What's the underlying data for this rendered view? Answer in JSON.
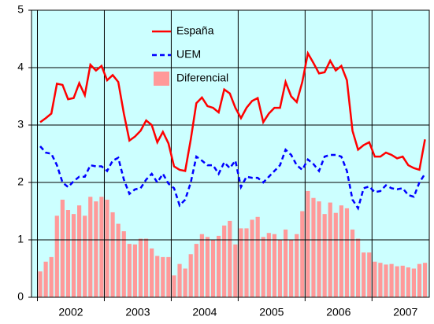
{
  "chart_data": {
    "type": "bar_line",
    "categories": [
      null,
      null,
      null,
      null,
      null,
      "2002",
      null,
      null,
      null,
      null,
      null,
      null,
      null,
      null,
      null,
      null,
      null,
      "2003",
      null,
      null,
      null,
      null,
      null,
      null,
      null,
      null,
      null,
      null,
      null,
      "2004",
      null,
      null,
      null,
      null,
      null,
      null,
      null,
      null,
      null,
      null,
      null,
      "2005",
      null,
      null,
      null,
      null,
      null,
      null,
      null,
      null,
      null,
      null,
      null,
      "2006",
      null,
      null,
      null,
      null,
      null,
      null,
      null,
      null,
      null,
      null,
      null,
      "2007",
      null,
      null,
      null,
      null
    ],
    "series": [
      {
        "name": "España",
        "kind": "line",
        "color": "#ff0000",
        "values": [
          3.05,
          3.12,
          3.2,
          3.72,
          3.7,
          3.45,
          3.47,
          3.73,
          3.52,
          4.05,
          3.95,
          4.03,
          3.78,
          3.87,
          3.75,
          3.2,
          2.73,
          2.8,
          2.9,
          3.08,
          3.0,
          2.7,
          2.88,
          2.68,
          2.28,
          2.22,
          2.2,
          2.75,
          3.38,
          3.48,
          3.33,
          3.3,
          3.22,
          3.62,
          3.55,
          3.3,
          3.12,
          3.3,
          3.42,
          3.47,
          3.05,
          3.2,
          3.3,
          3.3,
          3.75,
          3.5,
          3.4,
          3.75,
          4.25,
          4.08,
          3.9,
          3.92,
          4.12,
          3.95,
          4.03,
          3.78,
          2.9,
          2.57,
          2.65,
          2.7,
          2.45,
          2.45,
          2.52,
          2.48,
          2.42,
          2.45,
          2.3,
          2.25,
          2.22,
          2.75
        ]
      },
      {
        "name": "UEM",
        "kind": "dashed",
        "color": "#0000ff",
        "values": [
          2.63,
          2.52,
          2.5,
          2.3,
          2.0,
          1.92,
          2.02,
          2.1,
          2.1,
          2.3,
          2.28,
          2.28,
          2.2,
          2.38,
          2.43,
          2.05,
          1.8,
          1.88,
          1.9,
          2.05,
          2.15,
          2.0,
          2.15,
          1.98,
          1.9,
          1.6,
          1.7,
          2.0,
          2.45,
          2.38,
          2.3,
          2.3,
          2.15,
          2.35,
          2.25,
          2.38,
          1.92,
          2.1,
          2.08,
          2.08,
          2.0,
          2.1,
          2.2,
          2.3,
          2.57,
          2.48,
          2.3,
          2.22,
          2.4,
          2.32,
          2.2,
          2.45,
          2.48,
          2.48,
          2.45,
          2.2,
          1.7,
          1.55,
          1.9,
          1.93,
          1.83,
          1.85,
          1.95,
          1.9,
          1.88,
          1.9,
          1.78,
          1.75,
          2.0,
          2.15
        ]
      },
      {
        "name": "Diferencial",
        "kind": "bar",
        "color": "#ff9999",
        "values": [
          0.45,
          0.62,
          0.7,
          1.42,
          1.7,
          1.52,
          1.45,
          1.6,
          1.42,
          1.75,
          1.67,
          1.75,
          1.7,
          1.48,
          1.28,
          1.15,
          0.93,
          0.92,
          1.02,
          1.02,
          0.85,
          0.72,
          0.7,
          0.7,
          0.38,
          0.58,
          0.5,
          0.75,
          0.93,
          1.1,
          1.05,
          1.0,
          1.07,
          1.25,
          1.33,
          0.92,
          1.2,
          1.2,
          1.35,
          1.4,
          1.05,
          1.12,
          1.1,
          1.0,
          1.18,
          1.0,
          1.1,
          1.5,
          1.85,
          1.73,
          1.67,
          1.45,
          1.65,
          1.47,
          1.6,
          1.55,
          1.18,
          1.02,
          0.78,
          0.78,
          0.62,
          0.6,
          0.57,
          0.58,
          0.54,
          0.55,
          0.52,
          0.5,
          0.58,
          0.6
        ]
      }
    ],
    "ylim": [
      0,
      5
    ],
    "yticks": [
      0,
      1,
      2,
      3,
      4,
      5
    ],
    "grid": true,
    "background": "#ccffff",
    "legend": "top"
  }
}
